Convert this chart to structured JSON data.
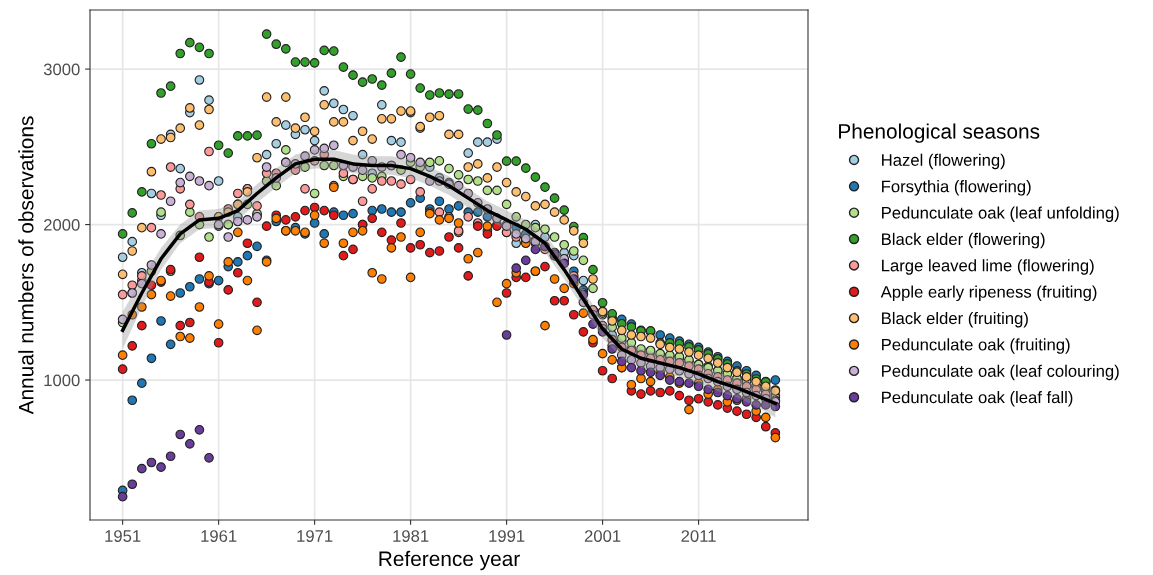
{
  "chart_data": {
    "type": "scatter",
    "xlabel": "Reference year",
    "ylabel": "Annual numbers of observations",
    "legend_title": "Phenological seasons",
    "legend": "right",
    "grid": true,
    "marker": "circle",
    "xlim": [
      1947.6,
      2022.4
    ],
    "ylim": [
      100,
      3380
    ],
    "xticks": [
      1951,
      1961,
      1971,
      1981,
      1991,
      2001,
      2011
    ],
    "yticks": [
      1000,
      2000,
      3000
    ],
    "x": [
      1951,
      1952,
      1953,
      1954,
      1955,
      1956,
      1957,
      1958,
      1959,
      1960,
      1961,
      1962,
      1963,
      1964,
      1965,
      1966,
      1967,
      1968,
      1969,
      1970,
      1971,
      1972,
      1973,
      1974,
      1975,
      1976,
      1977,
      1978,
      1979,
      1980,
      1981,
      1982,
      1983,
      1984,
      1985,
      1986,
      1987,
      1988,
      1989,
      1990,
      1991,
      1992,
      1993,
      1994,
      1995,
      1996,
      1997,
      1998,
      1999,
      2000,
      2001,
      2002,
      2003,
      2004,
      2005,
      2006,
      2007,
      2008,
      2009,
      2010,
      2011,
      2012,
      2013,
      2014,
      2015,
      2016,
      2017,
      2018,
      2019
    ],
    "series": [
      {
        "name": "Hazel (flowering)",
        "color": "#a6cee3",
        "values": [
          1790,
          1890,
          1690,
          2200,
          2060,
          2580,
          2360,
          2720,
          2930,
          2800,
          2280,
          2000,
          2050,
          2230,
          2060,
          2450,
          2520,
          2640,
          2580,
          2610,
          2540,
          2860,
          2780,
          2740,
          2700,
          2450,
          2330,
          2770,
          2540,
          2530,
          2720,
          2620,
          2370,
          2300,
          2270,
          1950,
          2460,
          2530,
          2530,
          2550,
          1950,
          1880,
          1910,
          2000,
          1920,
          1800,
          1820,
          1800,
          1640,
          1450,
          1420,
          1290,
          1250,
          1200,
          1180,
          1180,
          1160,
          1150,
          1140,
          1120,
          1100,
          1090,
          1060,
          1040,
          1010,
          990,
          960,
          940,
          900
        ]
      },
      {
        "name": "Forsythia (flowering)",
        "color": "#1f78b4",
        "values": [
          290,
          870,
          980,
          1140,
          1380,
          1230,
          1560,
          1600,
          1650,
          1620,
          1640,
          1730,
          1760,
          1800,
          1860,
          1770,
          2020,
          1960,
          1980,
          1940,
          2010,
          1940,
          2080,
          2060,
          2070,
          2000,
          2090,
          2100,
          2080,
          2080,
          2140,
          2170,
          2100,
          2150,
          2100,
          2120,
          2080,
          2080,
          2050,
          2040,
          2000,
          1980,
          1940,
          1900,
          null,
          1800,
          null,
          1700,
          1580,
          1450,
          1440,
          1400,
          1390,
          1360,
          1320,
          1310,
          1290,
          1270,
          1250,
          1230,
          1210,
          1180,
          1150,
          1120,
          1090,
          1060,
          1030,
          990,
          1000
        ]
      },
      {
        "name": "Pedunculate oak (leaf unfolding)",
        "color": "#b2df8a",
        "values": [
          1370,
          1560,
          1640,
          1700,
          2080,
          1700,
          1930,
          2080,
          2000,
          1920,
          1990,
          2000,
          2130,
          2130,
          2070,
          2280,
          2250,
          2480,
          2380,
          2370,
          2200,
          2380,
          2380,
          2310,
          2290,
          2310,
          2300,
          2310,
          2380,
          2350,
          2400,
          2370,
          2400,
          2410,
          2360,
          2320,
          2290,
          2280,
          2220,
          2220,
          2130,
          2050,
          2000,
          1980,
          1970,
          1920,
          1870,
          1830,
          1770,
          1590,
          1430,
          1340,
          1270,
          1240,
          1200,
          1190,
          1170,
          1160,
          1150,
          1130,
          1100,
          1080,
          1060,
          1040,
          1010,
          990,
          960,
          930,
          890
        ]
      },
      {
        "name": "Black elder (flowering)",
        "color": "#33a02c",
        "values": [
          1940,
          2075,
          2210,
          2520,
          2846,
          2890,
          3100,
          3170,
          3140,
          3100,
          2510,
          2460,
          2570,
          2570,
          2575,
          3225,
          3160,
          3130,
          3045,
          3045,
          3040,
          3120,
          3116,
          3013,
          2961,
          2916,
          2936,
          2897,
          2974,
          3077,
          2968,
          2878,
          2833,
          2846,
          2839,
          2840,
          2743,
          2736,
          2650,
          2576,
          2408,
          2408,
          2363,
          2305,
          2241,
          2170,
          2093,
          1987,
          1916,
          1710,
          1497,
          1426,
          1362,
          1342,
          1316,
          1316,
          1239,
          1239,
          1233,
          1213,
          1194,
          1168,
          1136,
          1104,
          1059,
          1039,
          1007,
          988,
          936
        ]
      },
      {
        "name": "Large leaved lime (flowering)",
        "color": "#fb9a99",
        "values": [
          1550,
          1610,
          1670,
          1980,
          2190,
          2370,
          2230,
          2130,
          2050,
          2470,
          2050,
          2100,
          2200,
          2230,
          2120,
          2330,
          2330,
          2400,
          2350,
          2230,
          2410,
          2450,
          2250,
          2330,
          2290,
          2150,
          2230,
          2280,
          2280,
          2260,
          2290,
          2210,
          2080,
          2080,
          2050,
          1960,
          2050,
          2010,
          1960,
          2000,
          1950,
          1920,
          1900,
          1880,
          1840,
          1800,
          1770,
          1670,
          1560,
          1450,
          1350,
          1260,
          1210,
          1190,
          1160,
          1140,
          1130,
          1120,
          1110,
          1090,
          1070,
          1040,
          1020,
          1000,
          980,
          960,
          940,
          910,
          870
        ]
      },
      {
        "name": "Apple early ripeness (fruiting)",
        "color": "#e31a1c",
        "values": [
          1070,
          1220,
          1350,
          1610,
          1630,
          1710,
          1350,
          1370,
          1790,
          1630,
          1240,
          1580,
          1690,
          1880,
          1500,
          1990,
          2060,
          2030,
          2050,
          2090,
          2110,
          2090,
          2060,
          1800,
          1840,
          2000,
          2040,
          1950,
          1900,
          2010,
          1850,
          1870,
          1820,
          1830,
          1920,
          1850,
          1670,
          1990,
          1940,
          1990,
          1560,
          1660,
          1660,
          1700,
          1730,
          1510,
          1510,
          1420,
          1310,
          1240,
          1060,
          1010,
          1080,
          930,
          910,
          930,
          920,
          930,
          900,
          870,
          880,
          860,
          840,
          820,
          800,
          780,
          760,
          700,
          660
        ]
      },
      {
        "name": "Black elder (fruiting)",
        "color": "#fdbf6f",
        "values": [
          1680,
          1830,
          1980,
          2340,
          2550,
          2560,
          2620,
          2750,
          2640,
          2740,
          2050,
          2080,
          2130,
          2210,
          2430,
          2820,
          2660,
          2820,
          2620,
          2690,
          2600,
          2770,
          2660,
          2660,
          2540,
          2600,
          2550,
          2680,
          2680,
          2730,
          2730,
          2630,
          2690,
          2700,
          2580,
          2580,
          2370,
          2390,
          2300,
          2370,
          2270,
          2210,
          2180,
          2120,
          2130,
          2080,
          2030,
          1960,
          1880,
          1650,
          1440,
          1380,
          1320,
          1290,
          1280,
          1270,
          1230,
          1210,
          1200,
          1180,
          1160,
          1140,
          1110,
          1080,
          1050,
          1020,
          990,
          960,
          930
        ]
      },
      {
        "name": "Pedunculate oak (fruiting)",
        "color": "#ff7f00",
        "values": [
          1160,
          1420,
          1470,
          1550,
          1640,
          1540,
          1280,
          1270,
          1470,
          1670,
          1360,
          1760,
          1950,
          1640,
          1320,
          1760,
          2040,
          1960,
          1960,
          1950,
          2060,
          1880,
          2240,
          1880,
          1950,
          1960,
          1690,
          1650,
          1850,
          1920,
          1660,
          1950,
          2070,
          2030,
          2040,
          2010,
          1780,
          1820,
          1990,
          1500,
          1620,
          1690,
          1880,
          1700,
          1350,
          1650,
          1590,
          1620,
          1430,
          1260,
          1170,
          1130,
          1080,
          970,
          1010,
          990,
          1050,
          1020,
          980,
          810,
          980,
          910,
          940,
          860,
          870,
          880,
          800,
          760,
          630
        ]
      },
      {
        "name": "Pedunculate oak (leaf colouring)",
        "color": "#cab2d6",
        "values": [
          1390,
          1560,
          1620,
          1740,
          1940,
          2150,
          2270,
          2310,
          2280,
          2250,
          2000,
          1920,
          2020,
          2030,
          2050,
          2370,
          2300,
          2400,
          2390,
          2440,
          2480,
          2490,
          2510,
          2380,
          2370,
          2350,
          2410,
          2370,
          2380,
          2450,
          2430,
          2400,
          2280,
          2280,
          2260,
          2250,
          2200,
          2140,
          2100,
          2040,
          1990,
          1940,
          1910,
          1890,
          1860,
          1820,
          1780,
          1640,
          1500,
          1420,
          1330,
          1220,
          1160,
          1130,
          1110,
          1090,
          1080,
          1070,
          1060,
          1040,
          1030,
          1010,
          990,
          960,
          940,
          920,
          900,
          880,
          860
        ]
      },
      {
        "name": "Pedunculate oak (leaf fall)",
        "color": "#6a3d9a",
        "values": [
          250,
          330,
          430,
          470,
          440,
          510,
          650,
          590,
          680,
          500,
          null,
          null,
          null,
          null,
          null,
          null,
          null,
          null,
          null,
          null,
          null,
          null,
          null,
          null,
          null,
          null,
          null,
          null,
          null,
          null,
          null,
          null,
          null,
          null,
          null,
          null,
          null,
          null,
          null,
          null,
          1290,
          1720,
          1770,
          1840,
          1860,
          1810,
          1750,
          1650,
          1550,
          1360,
          1310,
          1200,
          1120,
          1080,
          1060,
          1050,
          1030,
          1000,
          990,
          980,
          960,
          940,
          920,
          900,
          880,
          860,
          840,
          840,
          830
        ]
      },
      {
        "type": "line",
        "color": "#000000",
        "marker": "none",
        "x": [
          1951,
          1953,
          1955,
          1957,
          1959,
          1961,
          1963,
          1965,
          1967,
          1969,
          1971,
          1973,
          1975,
          1977,
          1979,
          1981,
          1983,
          1985,
          1987,
          1989,
          1991,
          1993,
          1995,
          1997,
          1999,
          2001,
          2003,
          2005,
          2007,
          2009,
          2011,
          2013,
          2015,
          2017,
          2019
        ],
        "values": [
          1320,
          1560,
          1780,
          1940,
          2030,
          2040,
          2090,
          2200,
          2300,
          2390,
          2420,
          2420,
          2390,
          2380,
          2380,
          2360,
          2310,
          2250,
          2170,
          2090,
          2030,
          1970,
          1880,
          1710,
          1520,
          1330,
          1200,
          1140,
          1110,
          1080,
          1040,
          990,
          950,
          900,
          850
        ],
        "lower": [
          1200,
          1470,
          1710,
          1880,
          1970,
          1980,
          2030,
          2140,
          2240,
          2330,
          2360,
          2360,
          2330,
          2320,
          2320,
          2300,
          2250,
          2190,
          2110,
          2030,
          1970,
          1910,
          1820,
          1650,
          1460,
          1270,
          1140,
          1080,
          1050,
          1020,
          980,
          930,
          890,
          830,
          760
        ],
        "upper": [
          1440,
          1650,
          1850,
          2000,
          2090,
          2100,
          2150,
          2260,
          2360,
          2450,
          2480,
          2480,
          2450,
          2440,
          2440,
          2420,
          2370,
          2310,
          2230,
          2150,
          2090,
          2030,
          1940,
          1770,
          1580,
          1390,
          1260,
          1200,
          1170,
          1140,
          1100,
          1050,
          1010,
          970,
          940
        ]
      }
    ]
  }
}
